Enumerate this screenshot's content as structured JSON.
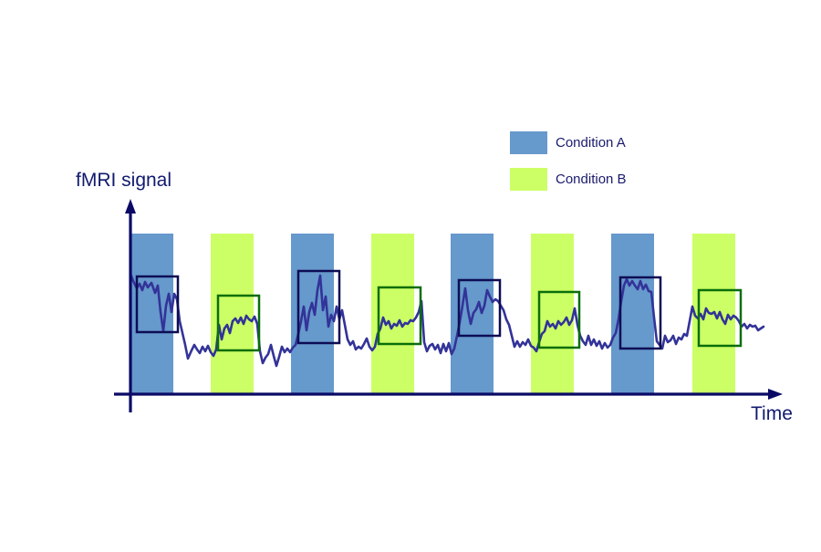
{
  "legend": {
    "condition_a": {
      "label": "Condition A",
      "color": "#6699cc"
    },
    "condition_b": {
      "label": "Condition B",
      "color": "#ccff66"
    }
  },
  "axes": {
    "y_label": "fMRI signal",
    "x_label": "Time",
    "color": "#0a0a66"
  },
  "signal": {
    "color": "#333399",
    "box_a_color": "#0d0d55",
    "box_b_color": "#0a6e0a"
  },
  "blocks": [
    "A",
    "B",
    "A",
    "B",
    "A",
    "B",
    "A",
    "B"
  ]
}
